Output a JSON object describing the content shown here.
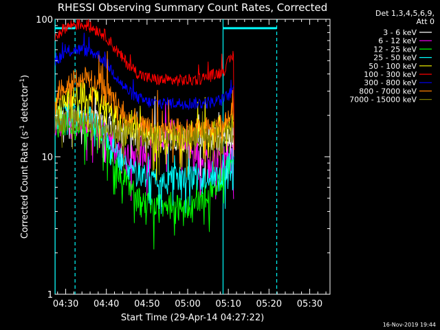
{
  "chart_data": {
    "type": "line",
    "title": "RHESSI Observing Summary Count Rates, Corrected",
    "xlabel": "Start Time (29-Apr-14 04:27:22)",
    "ylabel": "Corrected Count Rate (s⁻¹ detector⁻¹)",
    "ylabel_parts": [
      "Corrected Count Rate (s",
      "-1",
      " detector",
      "-1",
      ")"
    ],
    "y_scale": "log",
    "ylim": [
      1,
      100
    ],
    "y_ticks": [
      {
        "value": 1,
        "label": "1"
      },
      {
        "value": 10,
        "label": "10"
      },
      {
        "value": 100,
        "label": "100"
      }
    ],
    "xlim_minutes": [
      27.37,
      95.0
    ],
    "x_ticks": [
      {
        "t": 30,
        "label": "04:30"
      },
      {
        "t": 40,
        "label": "04:40"
      },
      {
        "t": 50,
        "label": "04:50"
      },
      {
        "t": 60,
        "label": "05:00"
      },
      {
        "t": 70,
        "label": "05:10"
      },
      {
        "t": 80,
        "label": "05:20"
      },
      {
        "t": 90,
        "label": "05:30"
      }
    ],
    "grid": false,
    "legend_header": [
      "Det 1,3,4,5,6,9,",
      "Att 0"
    ],
    "legend_position": "top-right",
    "timestamp": "16-Nov-2019 19:44",
    "markers": {
      "solid_vertical_t": [
        27.4,
        68.7
      ],
      "dashed_vertical_t": [
        32.3,
        81.9
      ],
      "top_bars": [
        {
          "t_start": 27.4,
          "t_end": 32.3
        },
        {
          "t_start": 68.7,
          "t_end": 81.9
        }
      ],
      "color": "#00ffff"
    },
    "x_units_note": "minutes after 04:00 on 29-Apr-14",
    "series": [
      {
        "name": "3 - 6 keV",
        "color": "#ffffff",
        "points": [
          [
            27.4,
            18
          ],
          [
            30,
            19
          ],
          [
            32,
            19.5
          ],
          [
            35,
            19
          ],
          [
            38,
            18
          ],
          [
            41,
            17
          ],
          [
            43,
            16
          ],
          [
            46,
            15
          ],
          [
            48,
            14.5
          ],
          [
            50,
            14
          ],
          [
            52,
            13.8
          ],
          [
            55,
            13.5
          ],
          [
            58,
            13.5
          ],
          [
            61,
            13.5
          ],
          [
            64,
            13.5
          ],
          [
            67,
            13.5
          ],
          [
            68.7,
            13.5
          ],
          [
            70,
            14
          ],
          [
            71,
            14.5
          ],
          [
            71.3,
            13
          ]
        ]
      },
      {
        "name": "6 - 12 keV",
        "color": "#ff00ff",
        "points": [
          [
            27.4,
            17
          ],
          [
            30,
            18
          ],
          [
            32,
            18.5
          ],
          [
            35,
            18
          ],
          [
            38,
            16
          ],
          [
            40,
            14
          ],
          [
            42,
            12
          ],
          [
            44,
            10.5
          ],
          [
            46,
            10
          ],
          [
            48,
            9.8
          ],
          [
            50,
            10
          ],
          [
            52,
            12
          ],
          [
            54,
            14
          ],
          [
            56,
            16
          ],
          [
            58,
            14
          ],
          [
            60,
            12
          ],
          [
            62,
            10.5
          ],
          [
            64,
            9.8
          ],
          [
            66,
            10
          ],
          [
            68,
            10
          ],
          [
            68.7,
            9.8
          ],
          [
            70,
            10.5
          ],
          [
            71,
            11
          ],
          [
            71.3,
            5
          ]
        ]
      },
      {
        "name": "12 - 25 keV",
        "color": "#00ff00",
        "points": [
          [
            27.4,
            17
          ],
          [
            30,
            17.5
          ],
          [
            32,
            17.8
          ],
          [
            35,
            17.5
          ],
          [
            38,
            15
          ],
          [
            40,
            12
          ],
          [
            42,
            9
          ],
          [
            44,
            7
          ],
          [
            46,
            6
          ],
          [
            48,
            5.2
          ],
          [
            50,
            4.6
          ],
          [
            52,
            4.4
          ],
          [
            54,
            4.3
          ],
          [
            56,
            4.3
          ],
          [
            58,
            4.3
          ],
          [
            60,
            4.3
          ],
          [
            62,
            4.5
          ],
          [
            64,
            5
          ],
          [
            66,
            5.8
          ],
          [
            68,
            6.5
          ],
          [
            68.7,
            7
          ],
          [
            70,
            8.5
          ],
          [
            71,
            9.8
          ],
          [
            71.3,
            10
          ]
        ]
      },
      {
        "name": "25 - 50 keV",
        "color": "#00ffff",
        "points": [
          [
            27.4,
            19
          ],
          [
            30,
            20
          ],
          [
            32,
            21
          ],
          [
            35,
            20
          ],
          [
            38,
            17
          ],
          [
            40,
            14
          ],
          [
            42,
            11
          ],
          [
            44,
            9
          ],
          [
            46,
            8
          ],
          [
            48,
            7.5
          ],
          [
            50,
            7.2
          ],
          [
            52,
            7
          ],
          [
            54,
            7
          ],
          [
            56,
            7
          ],
          [
            58,
            7
          ],
          [
            60,
            7
          ],
          [
            62,
            7
          ],
          [
            64,
            7
          ],
          [
            66,
            7
          ],
          [
            68,
            7.2
          ],
          [
            68.7,
            7.5
          ],
          [
            70,
            8.5
          ],
          [
            71,
            9.5
          ],
          [
            71.3,
            10
          ]
        ]
      },
      {
        "name": "50 - 100 keV",
        "color": "#ffff00",
        "points": [
          [
            27.4,
            22
          ],
          [
            30,
            26
          ],
          [
            32,
            28
          ],
          [
            34,
            29
          ],
          [
            36,
            28
          ],
          [
            38,
            26
          ],
          [
            40,
            23
          ],
          [
            42,
            20
          ],
          [
            44,
            18
          ],
          [
            46,
            16.5
          ],
          [
            48,
            15.5
          ],
          [
            50,
            15
          ],
          [
            52,
            14.5
          ],
          [
            54,
            14.5
          ],
          [
            56,
            14.5
          ],
          [
            58,
            14.5
          ],
          [
            60,
            14.5
          ],
          [
            62,
            14.5
          ],
          [
            64,
            14.8
          ],
          [
            66,
            15
          ],
          [
            68,
            15.5
          ],
          [
            68.7,
            15.8
          ],
          [
            70,
            16.5
          ],
          [
            71,
            17.5
          ],
          [
            71.3,
            18
          ]
        ]
      },
      {
        "name": "100 - 300 keV",
        "color": "#ff0000",
        "points": [
          [
            27.4,
            75
          ],
          [
            30,
            88
          ],
          [
            32,
            92
          ],
          [
            34,
            92
          ],
          [
            36,
            88
          ],
          [
            38,
            83
          ],
          [
            40,
            75
          ],
          [
            42,
            62
          ],
          [
            44,
            52
          ],
          [
            46,
            45
          ],
          [
            48,
            40
          ],
          [
            50,
            37.5
          ],
          [
            52,
            36.5
          ],
          [
            54,
            36
          ],
          [
            56,
            36
          ],
          [
            58,
            36
          ],
          [
            60,
            36
          ],
          [
            62,
            36.5
          ],
          [
            64,
            37.5
          ],
          [
            66,
            39
          ],
          [
            68,
            41
          ],
          [
            68.7,
            42
          ],
          [
            70,
            48
          ],
          [
            71,
            54
          ],
          [
            71.3,
            55
          ],
          [
            71.4,
            12
          ]
        ]
      },
      {
        "name": "300 - 800 keV",
        "color": "#0000ff",
        "points": [
          [
            27.4,
            50
          ],
          [
            30,
            57
          ],
          [
            32,
            60
          ],
          [
            34,
            60
          ],
          [
            36,
            58
          ],
          [
            38,
            55
          ],
          [
            40,
            48
          ],
          [
            42,
            40
          ],
          [
            44,
            33
          ],
          [
            46,
            29
          ],
          [
            48,
            26.5
          ],
          [
            50,
            25
          ],
          [
            52,
            24.5
          ],
          [
            54,
            24.5
          ],
          [
            56,
            24.5
          ],
          [
            58,
            24.5
          ],
          [
            60,
            24.5
          ],
          [
            62,
            24.5
          ],
          [
            64,
            24.5
          ],
          [
            66,
            25
          ],
          [
            68,
            25.5
          ],
          [
            68.7,
            26
          ],
          [
            70,
            28
          ],
          [
            71,
            30
          ],
          [
            71.3,
            31
          ]
        ]
      },
      {
        "name": "800 - 7000 keV",
        "color": "#ff8000",
        "points": [
          [
            27.4,
            28
          ],
          [
            30,
            34
          ],
          [
            32,
            36.5
          ],
          [
            34,
            37.5
          ],
          [
            36,
            36.5
          ],
          [
            38,
            34
          ],
          [
            40,
            30
          ],
          [
            42,
            25
          ],
          [
            44,
            21
          ],
          [
            46,
            18.5
          ],
          [
            48,
            17
          ],
          [
            50,
            16
          ],
          [
            52,
            15.5
          ],
          [
            54,
            15.5
          ],
          [
            56,
            15.5
          ],
          [
            58,
            15.5
          ],
          [
            60,
            15.5
          ],
          [
            62,
            15.5
          ],
          [
            64,
            15.8
          ],
          [
            66,
            16
          ],
          [
            68,
            16.5
          ],
          [
            68.7,
            17
          ],
          [
            70,
            19
          ],
          [
            71,
            21
          ],
          [
            71.3,
            22
          ]
        ]
      },
      {
        "name": "7000 - 15000 keV",
        "color": "#808000",
        "points": [
          [
            27.4,
            18
          ],
          [
            30,
            18.5
          ],
          [
            32,
            19
          ],
          [
            35,
            18.5
          ],
          [
            38,
            17
          ],
          [
            41,
            16
          ],
          [
            44,
            15
          ],
          [
            47,
            14.5
          ],
          [
            50,
            14
          ],
          [
            53,
            13.8
          ],
          [
            56,
            13.8
          ],
          [
            59,
            13.8
          ],
          [
            62,
            13.8
          ],
          [
            65,
            13.8
          ],
          [
            68,
            14
          ],
          [
            68.7,
            14
          ],
          [
            70,
            14.5
          ],
          [
            71,
            15
          ],
          [
            71.3,
            15
          ]
        ]
      }
    ]
  }
}
